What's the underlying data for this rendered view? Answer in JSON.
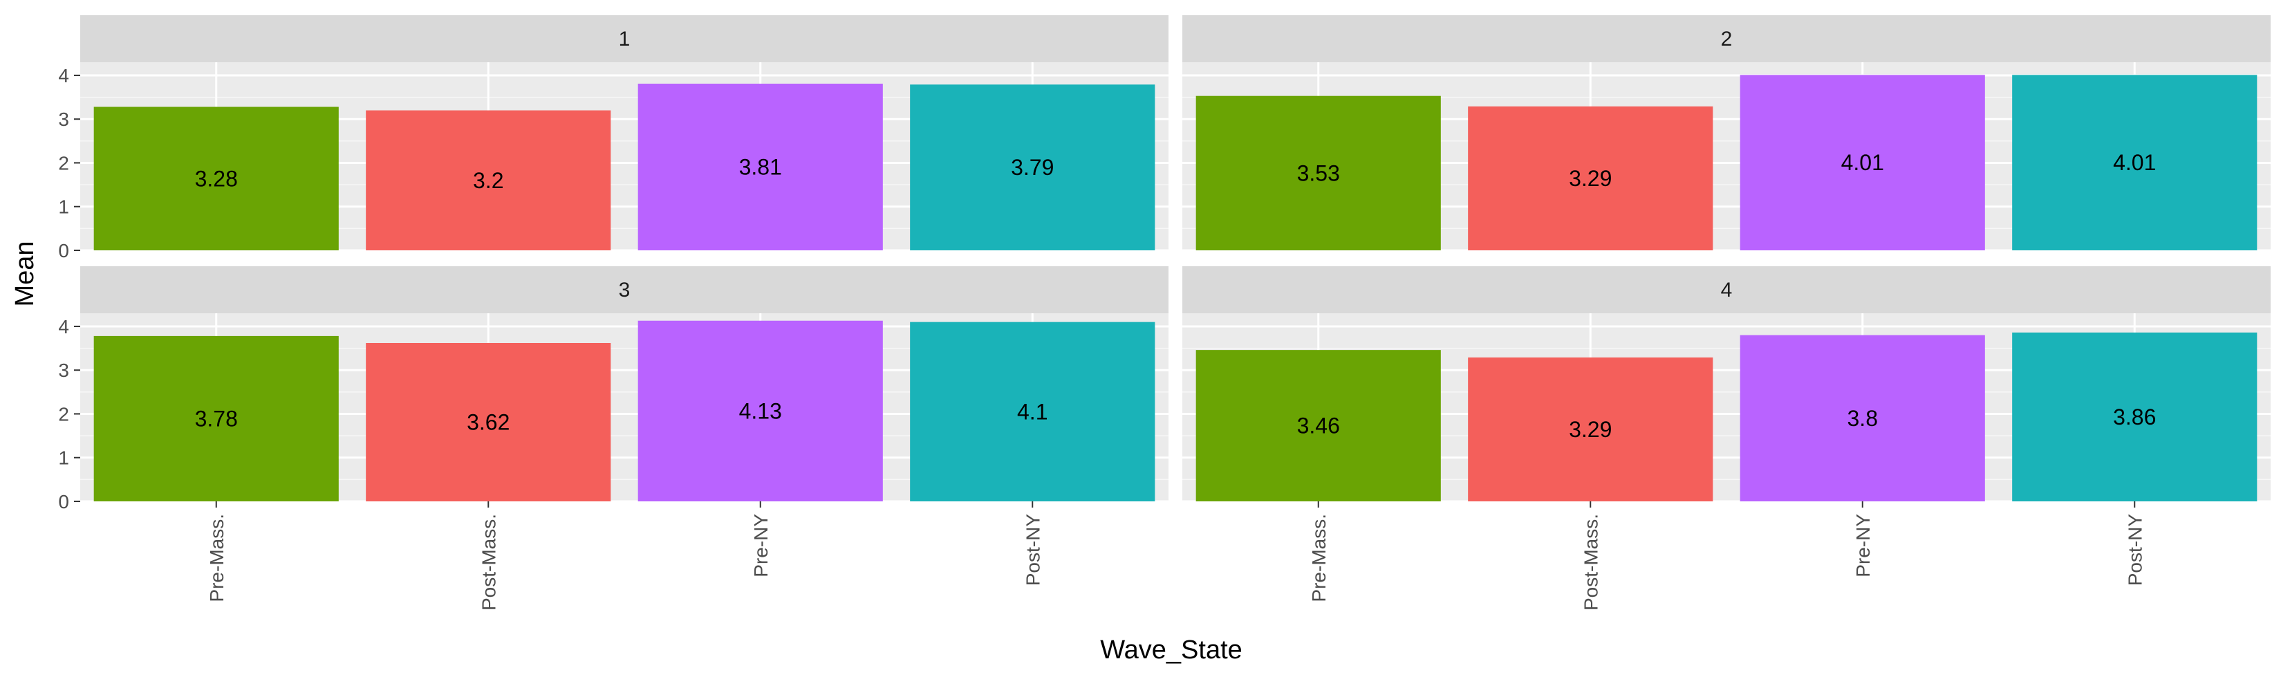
{
  "chart_data": {
    "type": "bar",
    "layout": "facet_wrap 2x2",
    "x_title": "Wave_State",
    "y_title": "Mean",
    "categories": [
      "Pre-Mass.",
      "Post-Mass.",
      "Pre-NY",
      "Post-NY"
    ],
    "y_ticks": [
      "0",
      "1",
      "2",
      "3",
      "4"
    ],
    "ylim": [
      0,
      4.3
    ],
    "grid": true,
    "legend": "none",
    "colors": [
      "#6aa404",
      "#f45f5b",
      "#b963ff",
      "#1ab3b8"
    ],
    "panels": [
      {
        "label": "1",
        "values": [
          3.28,
          3.2,
          3.81,
          3.79
        ],
        "data_labels": [
          "3.28",
          "3.2",
          "3.81",
          "3.79"
        ]
      },
      {
        "label": "2",
        "values": [
          3.53,
          3.29,
          4.01,
          4.01
        ],
        "data_labels": [
          "3.53",
          "3.29",
          "4.01",
          "4.01"
        ]
      },
      {
        "label": "3",
        "values": [
          3.78,
          3.62,
          4.13,
          4.1
        ],
        "data_labels": [
          "3.78",
          "3.62",
          "4.13",
          "4.1"
        ]
      },
      {
        "label": "4",
        "values": [
          3.46,
          3.29,
          3.8,
          3.86
        ],
        "data_labels": [
          "3.46",
          "3.29",
          "3.8",
          "3.86"
        ]
      }
    ]
  }
}
